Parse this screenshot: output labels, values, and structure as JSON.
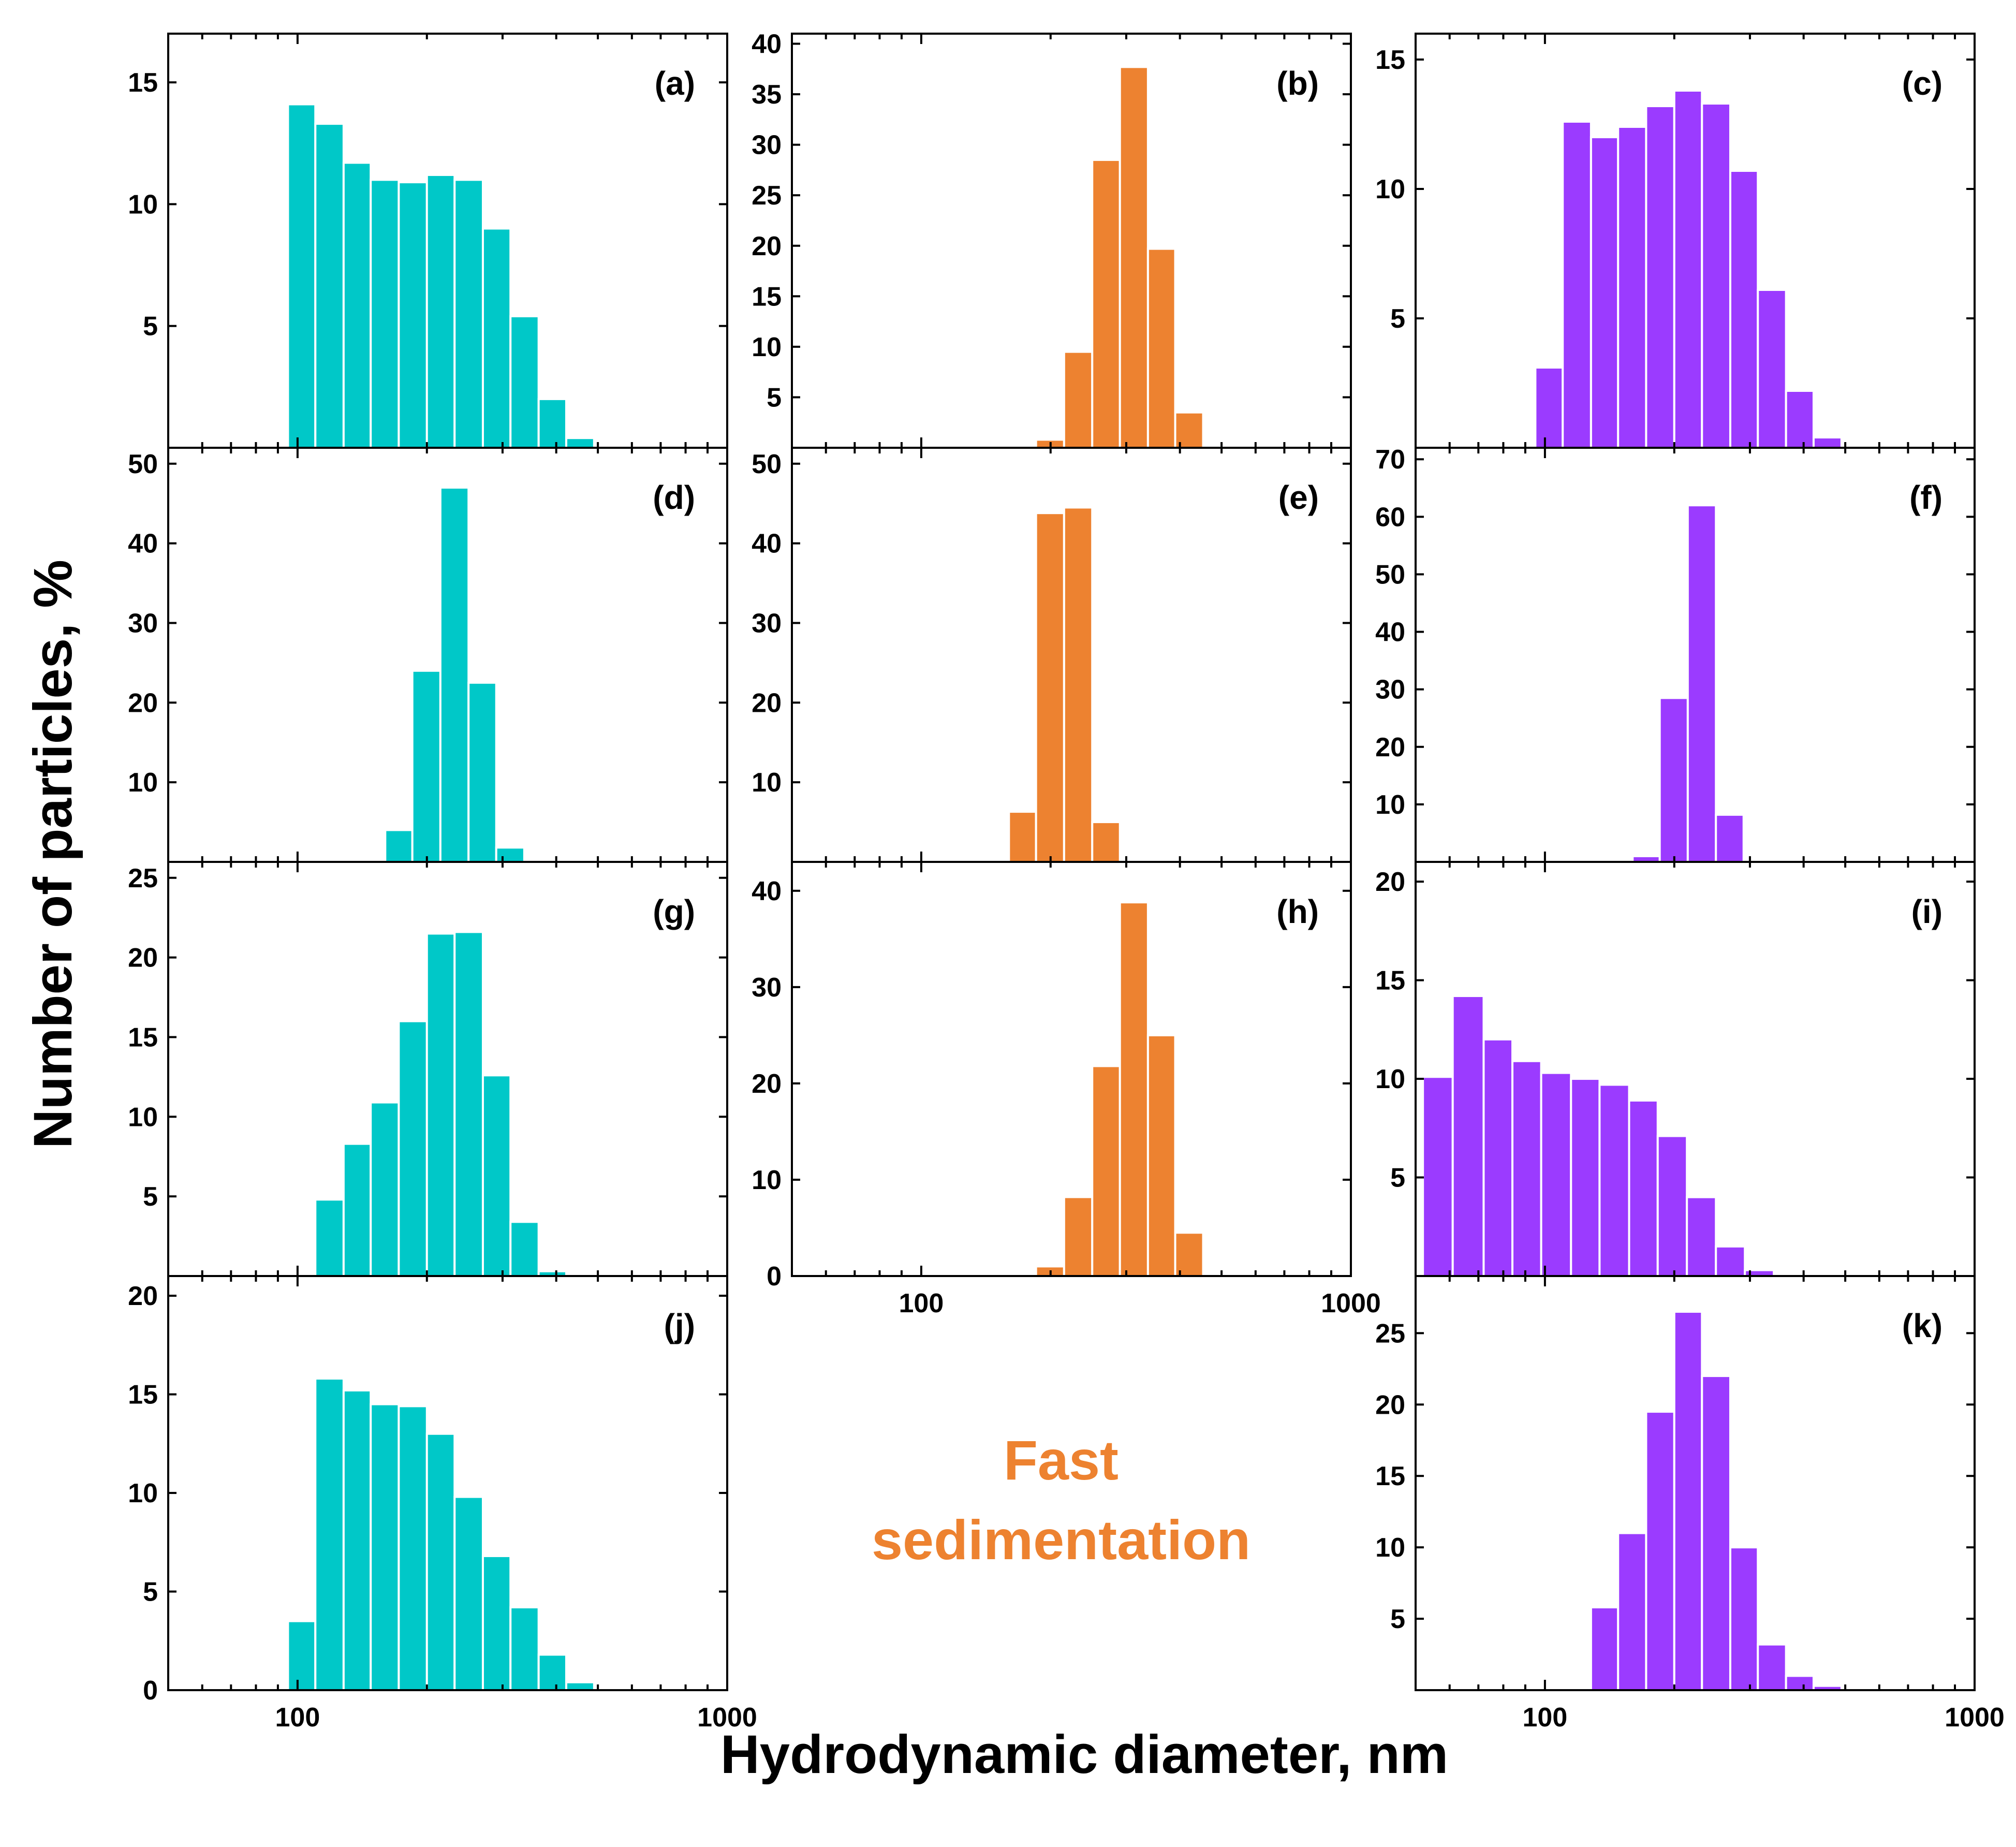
{
  "figure": {
    "xlabel": "Hydrodynamic diameter, nm",
    "ylabel": "Number of particles, %",
    "annotation": {
      "line1": "Fast",
      "line2": "sedimentation",
      "color": "#ED8230"
    },
    "colors": {
      "teal": "#00C8C8",
      "orange": "#ED8230",
      "purple": "#9B3BFF"
    }
  },
  "chart_data": [
    {
      "id": "a",
      "label": "(a)",
      "type": "bar",
      "color": "#00C8C8",
      "xscale": "log",
      "xlim": [
        50,
        1000
      ],
      "ylim": [
        0,
        17
      ],
      "yticks": [
        5,
        10,
        15
      ],
      "xticks": [],
      "bins": [
        [
          95,
          110
        ],
        [
          110,
          128
        ],
        [
          128,
          148
        ],
        [
          148,
          172
        ],
        [
          172,
          200
        ],
        [
          200,
          232
        ],
        [
          232,
          270
        ],
        [
          270,
          313
        ],
        [
          313,
          364
        ],
        [
          364,
          422
        ],
        [
          422,
          490
        ],
        [
          490,
          570
        ]
      ],
      "values": [
        14.1,
        13.3,
        11.7,
        11.0,
        10.9,
        11.2,
        11.0,
        9.0,
        5.4,
        2.0,
        0.4,
        0
      ]
    },
    {
      "id": "b",
      "label": "(b)",
      "type": "bar",
      "color": "#ED8230",
      "xscale": "log",
      "xlim": [
        50,
        1000
      ],
      "ylim": [
        0,
        41
      ],
      "yticks": [
        5,
        10,
        15,
        20,
        25,
        30,
        35,
        40
      ],
      "xticks": [],
      "bins": [
        [
          185,
          215
        ],
        [
          215,
          250
        ],
        [
          250,
          290
        ],
        [
          290,
          337
        ],
        [
          337,
          390
        ],
        [
          390,
          453
        ]
      ],
      "values": [
        0.8,
        9.5,
        28.5,
        37.7,
        19.7,
        3.5
      ]
    },
    {
      "id": "c",
      "label": "(c)",
      "type": "bar",
      "color": "#9B3BFF",
      "xscale": "log",
      "xlim": [
        50,
        1000
      ],
      "ylim": [
        0,
        16
      ],
      "yticks": [
        5,
        10,
        15
      ],
      "xticks": [],
      "bins": [
        [
          95,
          110
        ],
        [
          110,
          128
        ],
        [
          128,
          148
        ],
        [
          148,
          172
        ],
        [
          172,
          200
        ],
        [
          200,
          232
        ],
        [
          232,
          270
        ],
        [
          270,
          313
        ],
        [
          313,
          364
        ],
        [
          364,
          422
        ],
        [
          422,
          490
        ],
        [
          490,
          570
        ]
      ],
      "values": [
        3.1,
        12.6,
        12.0,
        12.4,
        13.2,
        13.8,
        13.3,
        10.7,
        6.1,
        2.2,
        0.4,
        0
      ]
    },
    {
      "id": "d",
      "label": "(d)",
      "type": "bar",
      "color": "#00C8C8",
      "xscale": "log",
      "xlim": [
        50,
        1000
      ],
      "ylim": [
        0,
        52
      ],
      "yticks": [
        10,
        20,
        30,
        40,
        50
      ],
      "xticks": [],
      "bins": [
        [
          160,
          185
        ],
        [
          185,
          215
        ],
        [
          215,
          250
        ],
        [
          250,
          290
        ],
        [
          290,
          337
        ]
      ],
      "values": [
        4.0,
        24.0,
        47.0,
        22.5,
        1.8
      ]
    },
    {
      "id": "e",
      "label": "(e)",
      "type": "bar",
      "color": "#ED8230",
      "xscale": "log",
      "xlim": [
        50,
        1000
      ],
      "ylim": [
        0,
        52
      ],
      "yticks": [
        10,
        20,
        30,
        40,
        50
      ],
      "xticks": [],
      "bins": [
        [
          160,
          185
        ],
        [
          185,
          215
        ],
        [
          215,
          250
        ],
        [
          250,
          290
        ]
      ],
      "values": [
        6.3,
        43.8,
        44.5,
        5.0
      ]
    },
    {
      "id": "f",
      "label": "(f)",
      "type": "bar",
      "color": "#9B3BFF",
      "xscale": "log",
      "xlim": [
        50,
        1000
      ],
      "ylim": [
        0,
        72
      ],
      "yticks": [
        10,
        20,
        30,
        40,
        50,
        60,
        70
      ],
      "xticks": [],
      "bins": [
        [
          160,
          185
        ],
        [
          185,
          215
        ],
        [
          215,
          250
        ],
        [
          250,
          290
        ]
      ],
      "values": [
        1.0,
        28.5,
        62.0,
        8.2
      ]
    },
    {
      "id": "g",
      "label": "(g)",
      "type": "bar",
      "color": "#00C8C8",
      "xscale": "log",
      "xlim": [
        50,
        1000
      ],
      "ylim": [
        0,
        26
      ],
      "yticks": [
        5,
        10,
        15,
        20,
        25
      ],
      "xticks": [],
      "bins": [
        [
          110,
          128
        ],
        [
          128,
          148
        ],
        [
          148,
          172
        ],
        [
          172,
          200
        ],
        [
          200,
          232
        ],
        [
          232,
          270
        ],
        [
          270,
          313
        ],
        [
          313,
          364
        ],
        [
          364,
          422
        ]
      ],
      "values": [
        4.8,
        8.3,
        10.9,
        16.0,
        21.5,
        21.6,
        12.6,
        3.4,
        0.3
      ]
    },
    {
      "id": "h",
      "label": "(h)",
      "type": "bar",
      "color": "#ED8230",
      "xscale": "log",
      "xlim": [
        50,
        1000
      ],
      "ylim": [
        0,
        43
      ],
      "yticks": [
        0,
        10,
        20,
        30,
        40
      ],
      "xticks": [
        100,
        1000
      ],
      "bins": [
        [
          185,
          215
        ],
        [
          215,
          250
        ],
        [
          250,
          290
        ],
        [
          290,
          337
        ],
        [
          337,
          390
        ],
        [
          390,
          453
        ]
      ],
      "values": [
        1.0,
        8.2,
        21.8,
        38.8,
        25.0,
        4.5
      ]
    },
    {
      "id": "i",
      "label": "(i)",
      "type": "bar",
      "color": "#9B3BFF",
      "xscale": "log",
      "xlim": [
        50,
        1000
      ],
      "ylim": [
        0,
        21
      ],
      "yticks": [
        5,
        10,
        15,
        20
      ],
      "xticks": [],
      "bins": [
        [
          52,
          61
        ],
        [
          61,
          72
        ],
        [
          72,
          84
        ],
        [
          84,
          98
        ],
        [
          98,
          115
        ],
        [
          115,
          134
        ],
        [
          134,
          157
        ],
        [
          157,
          183
        ],
        [
          183,
          214
        ],
        [
          214,
          250
        ],
        [
          250,
          292
        ],
        [
          292,
          341
        ],
        [
          341,
          398
        ]
      ],
      "values": [
        10.1,
        14.2,
        12.0,
        10.9,
        10.3,
        10.0,
        9.7,
        8.9,
        7.1,
        4.0,
        1.5,
        0.3,
        0
      ]
    },
    {
      "id": "j",
      "label": "(j)",
      "type": "bar",
      "color": "#00C8C8",
      "xscale": "log",
      "xlim": [
        50,
        1000
      ],
      "ylim": [
        0,
        21
      ],
      "yticks": [
        0,
        5,
        10,
        15,
        20
      ],
      "xticks": [
        100,
        1000
      ],
      "bins": [
        [
          95,
          110
        ],
        [
          110,
          128
        ],
        [
          128,
          148
        ],
        [
          148,
          172
        ],
        [
          172,
          200
        ],
        [
          200,
          232
        ],
        [
          232,
          270
        ],
        [
          270,
          313
        ],
        [
          313,
          364
        ],
        [
          364,
          422
        ],
        [
          422,
          490
        ],
        [
          490,
          570
        ]
      ],
      "values": [
        3.5,
        15.8,
        15.2,
        14.5,
        14.4,
        13.0,
        9.8,
        6.8,
        4.2,
        1.8,
        0.4,
        0
      ]
    },
    {
      "id": "k",
      "label": "(k)",
      "type": "bar",
      "color": "#9B3BFF",
      "xscale": "log",
      "xlim": [
        50,
        1000
      ],
      "ylim": [
        0,
        29
      ],
      "yticks": [
        5,
        10,
        15,
        20,
        25
      ],
      "xticks": [
        100,
        1000
      ],
      "bins": [
        [
          128,
          148
        ],
        [
          148,
          172
        ],
        [
          172,
          200
        ],
        [
          200,
          232
        ],
        [
          232,
          270
        ],
        [
          270,
          313
        ],
        [
          313,
          364
        ],
        [
          364,
          422
        ],
        [
          422,
          490
        ],
        [
          490,
          570
        ]
      ],
      "values": [
        5.8,
        11.0,
        19.5,
        26.5,
        22.0,
        10.0,
        3.2,
        1.0,
        0.3,
        0
      ]
    }
  ]
}
